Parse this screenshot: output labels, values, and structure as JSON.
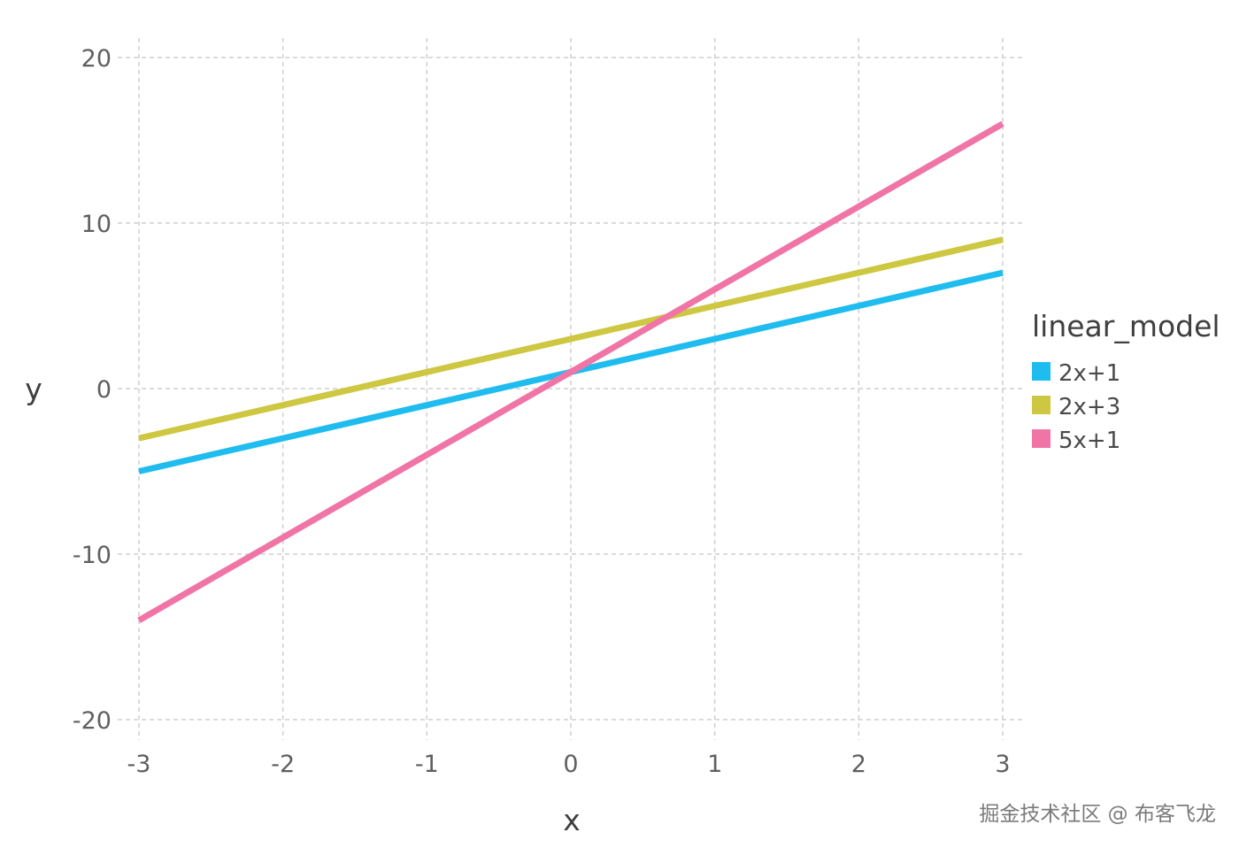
{
  "chart_data": {
    "type": "line",
    "x": [
      -3,
      -2,
      -1,
      0,
      1,
      2,
      3
    ],
    "series": [
      {
        "name": "2x+1",
        "values": [
          -5,
          -3,
          -1,
          1,
          3,
          5,
          7
        ],
        "color": "#1fbcef"
      },
      {
        "name": "2x+3",
        "values": [
          -3,
          -1,
          1,
          3,
          5,
          7,
          9
        ],
        "color": "#cdc741"
      },
      {
        "name": "5x+1",
        "values": [
          -14,
          -9,
          -4,
          1,
          6,
          11,
          16
        ],
        "color": "#f075a6"
      }
    ],
    "xlabel": "x",
    "ylabel": "y",
    "xlim": [
      -3,
      3
    ],
    "ylim": [
      -20,
      20
    ],
    "xticks": [
      -3,
      -2,
      -1,
      0,
      1,
      2,
      3
    ],
    "yticks": [
      -20,
      -10,
      0,
      10,
      20
    ],
    "xtick_labels": [
      "-3",
      "-2",
      "-1",
      "0",
      "1",
      "2",
      "3"
    ],
    "ytick_labels": [
      "-20",
      "-10",
      "0",
      "10",
      "20"
    ],
    "grid": true,
    "legend": {
      "title": "linear_model",
      "placement": "right"
    }
  },
  "watermark": "掘金技术社区 @ 布客飞龙"
}
